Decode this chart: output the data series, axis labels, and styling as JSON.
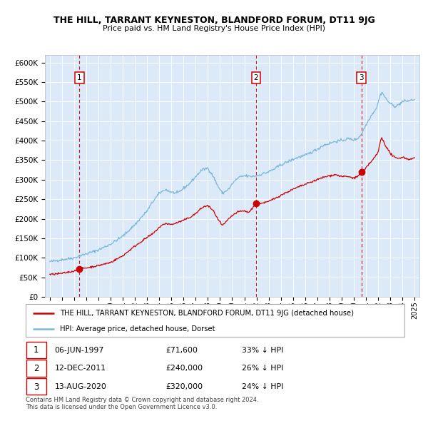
{
  "title": "THE HILL, TARRANT KEYNESTON, BLANDFORD FORUM, DT11 9JG",
  "subtitle": "Price paid vs. HM Land Registry's House Price Index (HPI)",
  "legend_line1": "THE HILL, TARRANT KEYNESTON, BLANDFORD FORUM, DT11 9JG (detached house)",
  "legend_line2": "HPI: Average price, detached house, Dorset",
  "footer1": "Contains HM Land Registry data © Crown copyright and database right 2024.",
  "footer2": "This data is licensed under the Open Government Licence v3.0.",
  "table": [
    {
      "num": "1",
      "date": "06-JUN-1997",
      "price": "£71,600",
      "pct": "33% ↓ HPI"
    },
    {
      "num": "2",
      "date": "12-DEC-2011",
      "price": "£240,000",
      "pct": "26% ↓ HPI"
    },
    {
      "num": "3",
      "date": "13-AUG-2020",
      "price": "£320,000",
      "pct": "24% ↓ HPI"
    }
  ],
  "sale_dates": [
    1997.44,
    2011.95,
    2020.62
  ],
  "sale_prices": [
    71600,
    240000,
    320000
  ],
  "hpi_color": "#7ab8d9",
  "price_color": "#cc0000",
  "bg_color": "#dce9f8",
  "ylim": [
    0,
    620000
  ],
  "xlim_start": 1994.6,
  "xlim_end": 2025.4
}
